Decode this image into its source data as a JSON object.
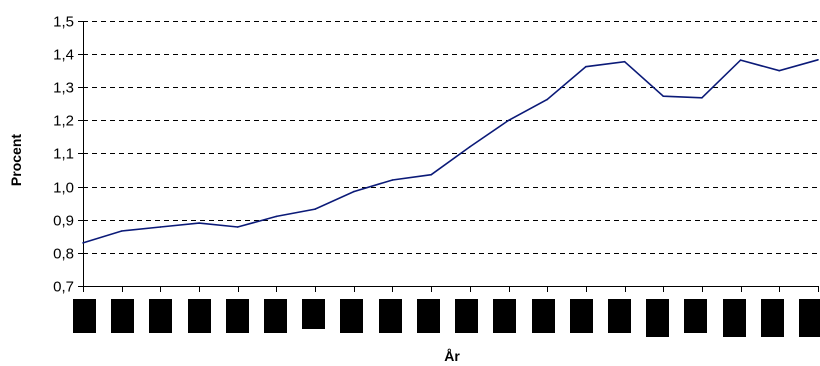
{
  "chart_data": {
    "type": "line",
    "title": "",
    "xlabel": "År",
    "ylabel": "Procent",
    "ylim": [
      0.7,
      1.5
    ],
    "yticks": [
      "0,7",
      "0,8",
      "0,9",
      "1,0",
      "1,1",
      "1,2",
      "1,3",
      "1,4",
      "1,5"
    ],
    "ytick_values": [
      0.7,
      0.8,
      0.9,
      1.0,
      1.1,
      1.2,
      1.3,
      1.4,
      1.5
    ],
    "grid": true,
    "x_tick_labels_redacted": true,
    "series": [
      {
        "values": [
          0.83,
          0.866,
          0.878,
          0.89,
          0.878,
          0.91,
          0.932,
          0.985,
          1.02,
          1.036,
          1.12,
          1.2,
          1.263,
          1.362,
          1.377,
          1.273,
          1.268,
          1.382,
          1.35,
          1.383
        ],
        "color": "#0b1a78"
      }
    ]
  },
  "colors": {
    "series": "#0b1a78",
    "grid": "#000000",
    "axis": "#000000",
    "redaction": "#000000"
  }
}
